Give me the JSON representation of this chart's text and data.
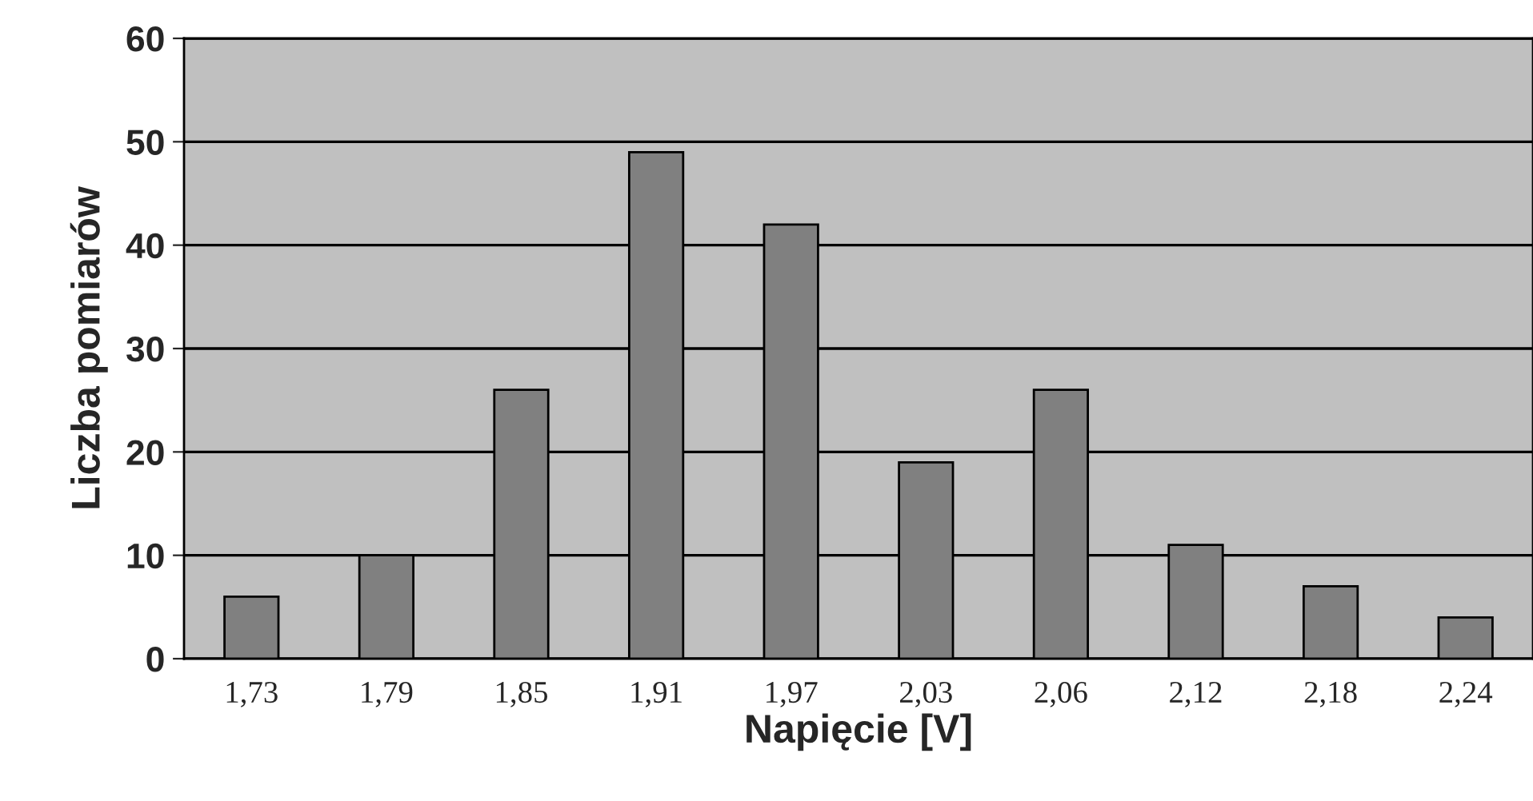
{
  "chart_data": {
    "type": "bar",
    "xlabel": "Napięcie [V]",
    "ylabel": "Liczba pomiarów",
    "categories": [
      "1,73",
      "1,79",
      "1,85",
      "1,91",
      "1,97",
      "2,03",
      "2,06",
      "2,12",
      "2,18",
      "2,24"
    ],
    "values": [
      6,
      10,
      26,
      49,
      42,
      19,
      26,
      11,
      7,
      4
    ],
    "color": "#808080",
    "ylim": [
      0,
      60
    ],
    "yticks": [
      0,
      10,
      20,
      30,
      40,
      50,
      60
    ],
    "grid": "y",
    "legend": false
  }
}
